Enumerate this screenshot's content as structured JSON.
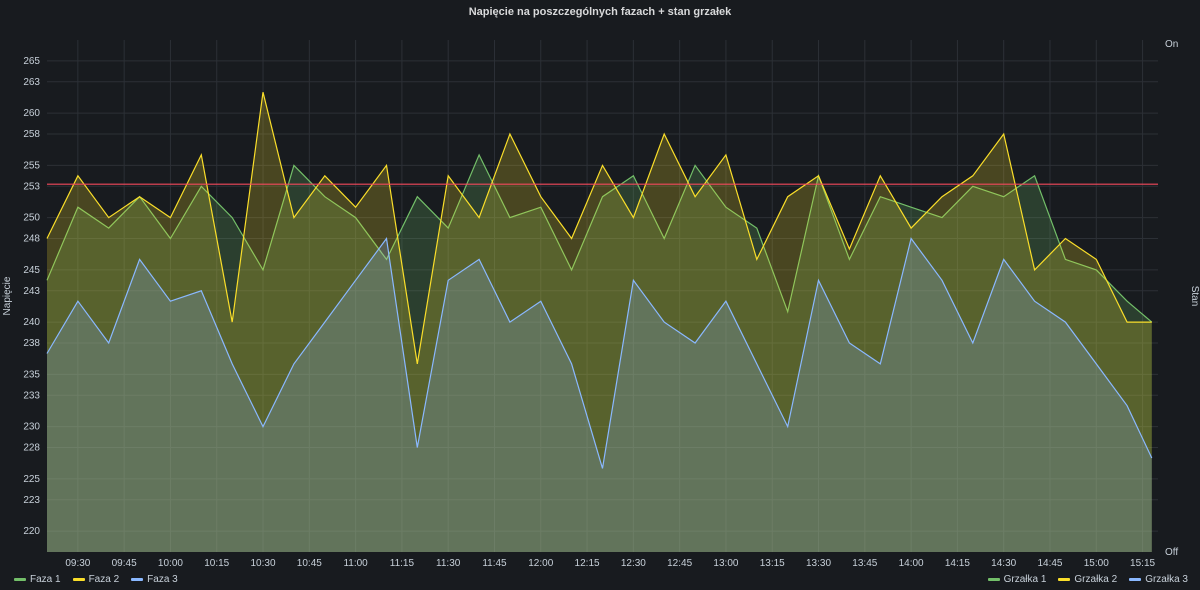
{
  "chart_data": {
    "type": "area",
    "title": "Napięcie na poszczególnych fazach + stan grzałek",
    "ylabel": "Napięcie",
    "y2label": "Stan",
    "ylim": [
      218,
      267
    ],
    "y_ticks": [
      220,
      223,
      225,
      228,
      230,
      233,
      235,
      238,
      240,
      243,
      245,
      248,
      250,
      253,
      255,
      258,
      260,
      263,
      265
    ],
    "y2_ticks": [
      "Off",
      "On"
    ],
    "x_ticks": [
      "09:30",
      "09:45",
      "10:00",
      "10:15",
      "10:30",
      "10:45",
      "11:00",
      "11:15",
      "11:30",
      "11:45",
      "12:00",
      "12:15",
      "12:30",
      "12:45",
      "13:00",
      "13:15",
      "13:30",
      "13:45",
      "14:00",
      "14:15",
      "14:30",
      "14:45",
      "15:00",
      "15:15"
    ],
    "x_start": "09:20",
    "x_end": "15:20",
    "threshold": 253.2,
    "grid": true,
    "legend_left": "bottom-left",
    "legend_right": "bottom-right",
    "series": [
      {
        "name": "Faza 1",
        "color": "#73bf69",
        "x": [
          "09:20",
          "09:30",
          "09:40",
          "09:50",
          "10:00",
          "10:10",
          "10:20",
          "10:30",
          "10:40",
          "10:50",
          "11:00",
          "11:10",
          "11:20",
          "11:30",
          "11:40",
          "11:50",
          "12:00",
          "12:10",
          "12:20",
          "12:30",
          "12:40",
          "12:50",
          "13:00",
          "13:10",
          "13:20",
          "13:30",
          "13:40",
          "13:50",
          "14:00",
          "14:10",
          "14:20",
          "14:30",
          "14:40",
          "14:50",
          "15:00",
          "15:10",
          "15:18"
        ],
        "values": [
          244,
          251,
          249,
          252,
          248,
          253,
          250,
          245,
          255,
          252,
          250,
          246,
          252,
          249,
          256,
          250,
          251,
          245,
          252,
          254,
          248,
          255,
          251,
          249,
          241,
          254,
          246,
          252,
          251,
          250,
          253,
          252,
          254,
          246,
          245,
          242,
          240
        ]
      },
      {
        "name": "Faza 2",
        "color": "#fade2a",
        "x": [
          "09:20",
          "09:30",
          "09:40",
          "09:50",
          "10:00",
          "10:10",
          "10:20",
          "10:30",
          "10:40",
          "10:50",
          "11:00",
          "11:10",
          "11:20",
          "11:30",
          "11:40",
          "11:50",
          "12:00",
          "12:10",
          "12:20",
          "12:30",
          "12:40",
          "12:50",
          "13:00",
          "13:10",
          "13:20",
          "13:30",
          "13:40",
          "13:50",
          "14:00",
          "14:10",
          "14:20",
          "14:30",
          "14:40",
          "14:50",
          "15:00",
          "15:10",
          "15:18"
        ],
        "values": [
          248,
          254,
          250,
          252,
          250,
          256,
          240,
          262,
          250,
          254,
          251,
          255,
          236,
          254,
          250,
          258,
          252,
          248,
          255,
          250,
          258,
          252,
          256,
          246,
          252,
          254,
          247,
          254,
          249,
          252,
          254,
          258,
          245,
          248,
          246,
          240,
          240
        ]
      },
      {
        "name": "Faza 3",
        "color": "#8ab8ff",
        "x": [
          "09:20",
          "09:30",
          "09:40",
          "09:50",
          "10:00",
          "10:10",
          "10:20",
          "10:30",
          "10:40",
          "10:50",
          "11:00",
          "11:10",
          "11:20",
          "11:30",
          "11:40",
          "11:50",
          "12:00",
          "12:10",
          "12:20",
          "12:30",
          "12:40",
          "12:50",
          "13:00",
          "13:10",
          "13:20",
          "13:30",
          "13:40",
          "13:50",
          "14:00",
          "14:10",
          "14:20",
          "14:30",
          "14:40",
          "14:50",
          "15:00",
          "15:10",
          "15:18"
        ],
        "values": [
          237,
          242,
          238,
          246,
          242,
          243,
          236,
          230,
          236,
          240,
          244,
          248,
          228,
          244,
          246,
          240,
          242,
          236,
          226,
          244,
          240,
          238,
          242,
          236,
          230,
          244,
          238,
          236,
          248,
          244,
          238,
          246,
          242,
          240,
          236,
          232,
          227
        ]
      }
    ],
    "heater_series": [
      {
        "name": "Grzałka 1",
        "color": "#73bf69"
      },
      {
        "name": "Grzałka 2",
        "color": "#fade2a"
      },
      {
        "name": "Grzałka 3",
        "color": "#8ab8ff"
      }
    ]
  }
}
